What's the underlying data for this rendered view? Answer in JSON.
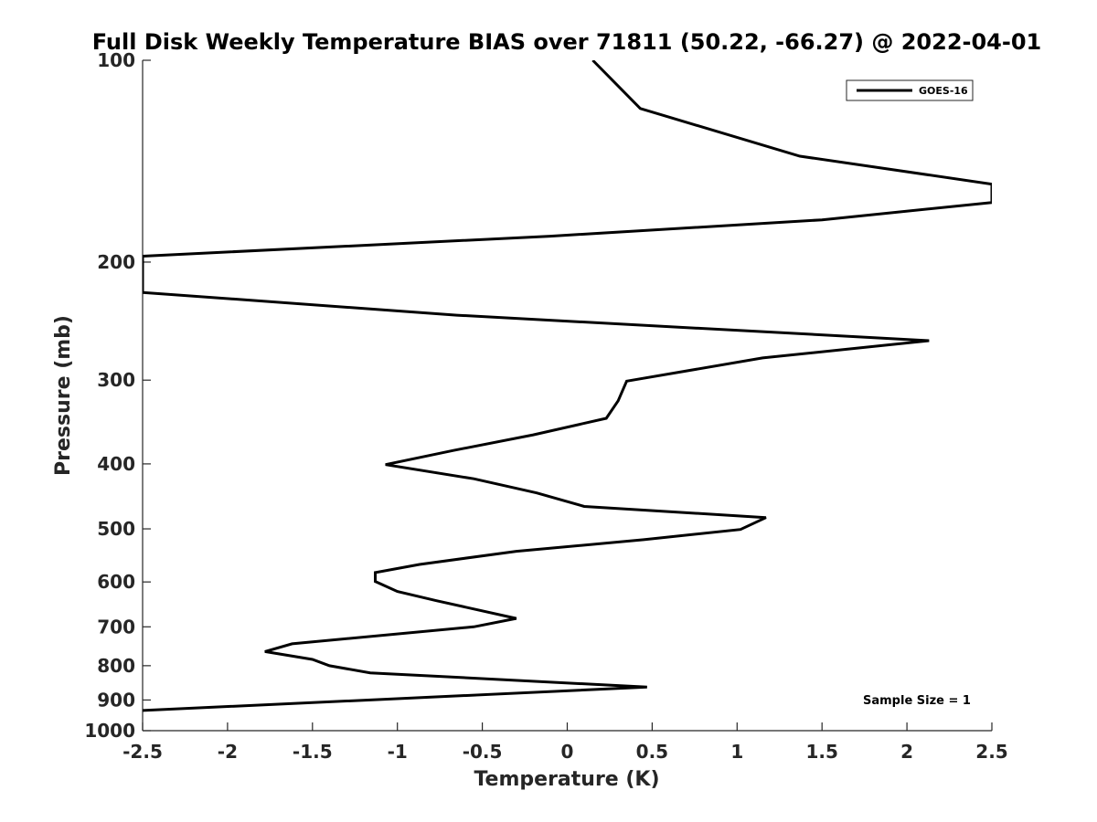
{
  "chart_data": {
    "type": "line",
    "title": "Full Disk Weekly Temperature BIAS over 71811 (50.22, -66.27) @ 2022-04-01",
    "xlabel": "Temperature (K)",
    "ylabel": "Pressure (mb)",
    "xlim": [
      -2.5,
      2.5
    ],
    "ylim": [
      100,
      1000
    ],
    "yscale": "log",
    "yreversed": true,
    "xticks": [
      -2.5,
      -2,
      -1.5,
      -1,
      -0.5,
      0,
      0.5,
      1,
      1.5,
      2,
      2.5
    ],
    "xtick_labels": [
      "-2.5",
      "-2",
      "-1.5",
      "-1",
      "-0.5",
      "0",
      "0.5",
      "1",
      "1.5",
      "2",
      "2.5"
    ],
    "yticks": [
      100,
      200,
      300,
      400,
      500,
      600,
      700,
      800,
      900,
      1000
    ],
    "ytick_labels": [
      "100",
      "200",
      "300",
      "400",
      "500",
      "600",
      "700",
      "800",
      "900",
      "1000"
    ],
    "grid": false,
    "legend": {
      "placement": "top-right",
      "entries": [
        "GOES-16"
      ]
    },
    "annotation": "Sample Size = 1",
    "series": [
      {
        "name": "GOES-16",
        "color": "#000000",
        "points": [
          [
            0.15,
            100
          ],
          [
            0.43,
            118
          ],
          [
            1.37,
            139
          ],
          [
            2.5,
            153
          ],
          [
            2.5,
            163
          ],
          [
            1.5,
            173
          ],
          [
            -0.1,
            183
          ],
          [
            -2.5,
            196
          ],
          [
            -2.5,
            222
          ],
          [
            -0.65,
            240
          ],
          [
            2.13,
            262
          ],
          [
            1.15,
            278
          ],
          [
            0.35,
            301
          ],
          [
            0.3,
            322
          ],
          [
            0.23,
            342
          ],
          [
            -0.2,
            362
          ],
          [
            -0.67,
            382
          ],
          [
            -1.07,
            401
          ],
          [
            -0.55,
            421
          ],
          [
            -0.18,
            442
          ],
          [
            0.1,
            463
          ],
          [
            1.17,
            481
          ],
          [
            1.02,
            501
          ],
          [
            0.45,
            519
          ],
          [
            -0.3,
            540
          ],
          [
            -0.87,
            565
          ],
          [
            -1.13,
            581
          ],
          [
            -1.13,
            599
          ],
          [
            -1.0,
            620
          ],
          [
            -0.77,
            640
          ],
          [
            -0.3,
            680
          ],
          [
            -0.55,
            700
          ],
          [
            -1.62,
            742
          ],
          [
            -1.78,
            762
          ],
          [
            -1.5,
            783
          ],
          [
            -1.4,
            800
          ],
          [
            -1.16,
            820
          ],
          [
            0.47,
            861
          ],
          [
            -2.5,
            933
          ]
        ]
      }
    ]
  }
}
